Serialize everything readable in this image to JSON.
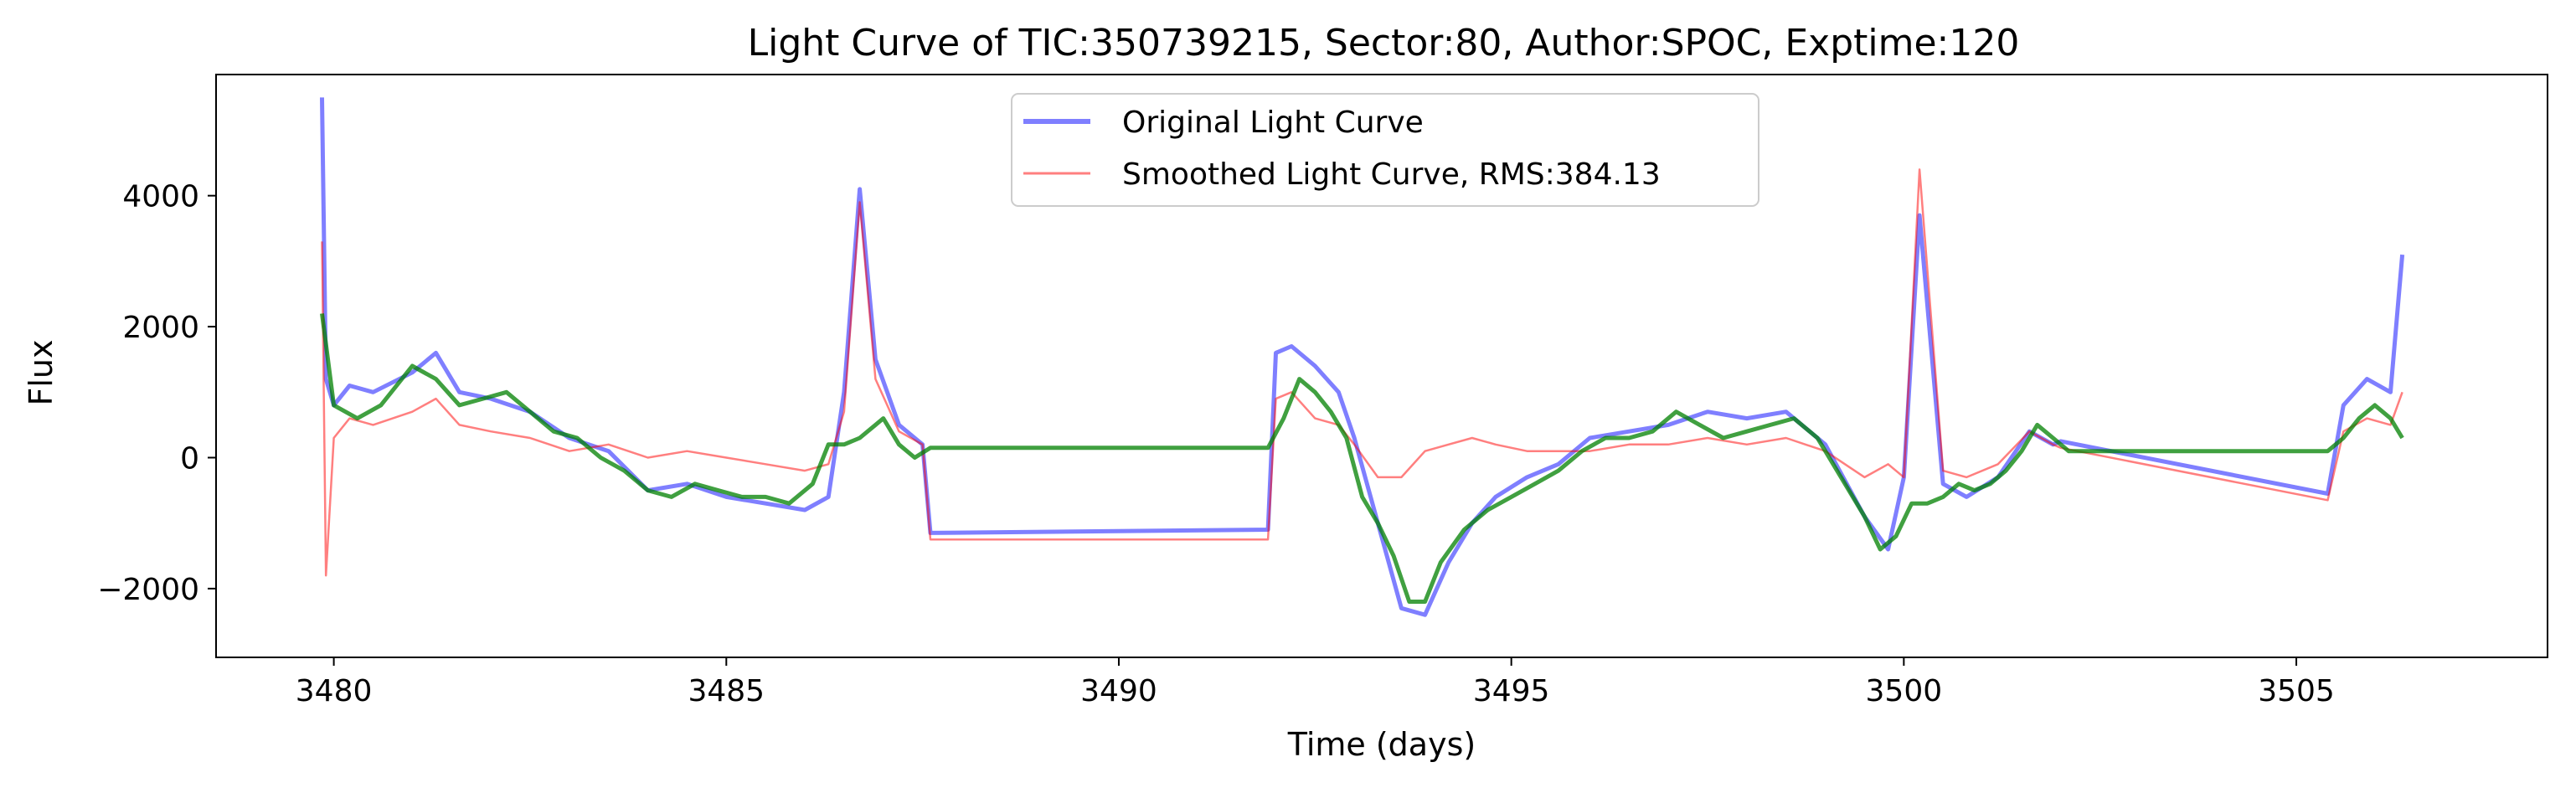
{
  "chart_data": {
    "type": "line",
    "title": "Light Curve of TIC:350739215, Sector:80, Author:SPOC, Exptime:120",
    "xlabel": "Time (days)",
    "ylabel": "Flux",
    "xlim": [
      3478.5,
      3508.2
    ],
    "ylim": [
      -3050,
      5850
    ],
    "xticks": [
      3480,
      3485,
      3490,
      3495,
      3500,
      3505
    ],
    "xtick_labels": [
      "3480",
      "3485",
      "3490",
      "3495",
      "3500",
      "3505"
    ],
    "yticks": [
      -2000,
      0,
      2000,
      4000
    ],
    "ytick_labels": [
      "−2000",
      "0",
      "2000",
      "4000"
    ],
    "grid": false,
    "legend_position": "top-center",
    "colors": {
      "original": "#0000ff",
      "smoothed": "#ff0000",
      "trend": "#008000"
    },
    "series": [
      {
        "name": "Original Light Curve",
        "color": "#0000ff",
        "x": [
          3479.85,
          3479.9,
          3480.0,
          3480.2,
          3480.5,
          3481.0,
          3481.3,
          3481.6,
          3482.0,
          3482.5,
          3483.0,
          3483.5,
          3484.0,
          3484.5,
          3485.0,
          3485.5,
          3486.0,
          3486.3,
          3486.5,
          3486.7,
          3486.9,
          3487.2,
          3487.5,
          3487.6,
          3491.9,
          3492.0,
          3492.2,
          3492.5,
          3492.8,
          3493.0,
          3493.3,
          3493.6,
          3493.9,
          3494.2,
          3494.5,
          3494.8,
          3495.2,
          3495.6,
          3496.0,
          3496.5,
          3497.0,
          3497.5,
          3498.0,
          3498.5,
          3499.0,
          3499.5,
          3499.8,
          3500.0,
          3500.2,
          3500.5,
          3500.8,
          3501.2,
          3501.6,
          3501.9,
          3502.0,
          3505.4,
          3505.6,
          3505.9,
          3506.2,
          3506.35
        ],
        "values": [
          5500,
          1200,
          800,
          1100,
          1000,
          1300,
          1600,
          1000,
          900,
          700,
          300,
          100,
          -500,
          -400,
          -600,
          -700,
          -800,
          -600,
          1000,
          4100,
          1500,
          500,
          200,
          -1150,
          -1100,
          1600,
          1700,
          1400,
          1000,
          300,
          -1000,
          -2300,
          -2400,
          -1600,
          -1000,
          -600,
          -300,
          -100,
          300,
          400,
          500,
          700,
          600,
          700,
          200,
          -900,
          -1400,
          -300,
          3700,
          -400,
          -600,
          -300,
          400,
          200,
          250,
          -550,
          800,
          1200,
          1000,
          3100
        ]
      },
      {
        "name": "Smoothed Light Curve, RMS:384.13",
        "color": "#ff0000",
        "x": [
          3479.85,
          3479.9,
          3480.0,
          3480.2,
          3480.5,
          3481.0,
          3481.3,
          3481.6,
          3482.0,
          3482.5,
          3483.0,
          3483.5,
          3484.0,
          3484.5,
          3485.0,
          3485.5,
          3486.0,
          3486.3,
          3486.5,
          3486.7,
          3486.9,
          3487.2,
          3487.5,
          3487.6,
          3491.9,
          3492.0,
          3492.2,
          3492.5,
          3492.8,
          3493.0,
          3493.3,
          3493.6,
          3493.9,
          3494.2,
          3494.5,
          3494.8,
          3495.2,
          3495.6,
          3496.0,
          3496.5,
          3497.0,
          3497.5,
          3498.0,
          3498.5,
          3499.0,
          3499.5,
          3499.8,
          3500.0,
          3500.2,
          3500.5,
          3500.8,
          3501.2,
          3501.6,
          3501.9,
          3502.0,
          3505.4,
          3505.6,
          3505.9,
          3506.2,
          3506.35
        ],
        "values": [
          3300,
          -1800,
          300,
          600,
          500,
          700,
          900,
          500,
          400,
          300,
          100,
          200,
          0,
          100,
          0,
          -100,
          -200,
          -100,
          700,
          3900,
          1200,
          400,
          200,
          -1250,
          -1250,
          900,
          1000,
          600,
          500,
          200,
          -300,
          -300,
          100,
          200,
          300,
          200,
          100,
          100,
          100,
          200,
          200,
          300,
          200,
          300,
          100,
          -300,
          -100,
          -300,
          4400,
          -200,
          -300,
          -100,
          400,
          200,
          150,
          -650,
          400,
          600,
          500,
          1000
        ]
      },
      {
        "name": "",
        "color": "#008000",
        "x": [
          3479.85,
          3480.0,
          3480.3,
          3480.6,
          3481.0,
          3481.3,
          3481.6,
          3481.9,
          3482.2,
          3482.5,
          3482.8,
          3483.1,
          3483.4,
          3483.7,
          3484.0,
          3484.3,
          3484.6,
          3484.9,
          3485.2,
          3485.5,
          3485.8,
          3486.1,
          3486.3,
          3486.5,
          3486.7,
          3486.9,
          3487.0,
          3487.2,
          3487.4,
          3487.6,
          3491.9,
          3492.1,
          3492.3,
          3492.5,
          3492.7,
          3492.9,
          3493.1,
          3493.3,
          3493.5,
          3493.7,
          3493.9,
          3494.1,
          3494.4,
          3494.7,
          3495.0,
          3495.3,
          3495.6,
          3495.9,
          3496.2,
          3496.5,
          3496.8,
          3497.1,
          3497.4,
          3497.7,
          3498.0,
          3498.3,
          3498.6,
          3498.9,
          3499.2,
          3499.5,
          3499.7,
          3499.9,
          3500.1,
          3500.3,
          3500.5,
          3500.7,
          3500.9,
          3501.1,
          3501.3,
          3501.5,
          3501.7,
          3501.9,
          3502.1,
          3505.4,
          3505.6,
          3505.8,
          3506.0,
          3506.2,
          3506.35
        ],
        "values": [
          2200,
          800,
          600,
          800,
          1400,
          1200,
          800,
          900,
          1000,
          700,
          400,
          300,
          0,
          -200,
          -500,
          -600,
          -400,
          -500,
          -600,
          -600,
          -700,
          -400,
          200,
          200,
          300,
          500,
          600,
          200,
          0,
          150,
          150,
          600,
          1200,
          1000,
          700,
          300,
          -600,
          -1000,
          -1500,
          -2200,
          -2200,
          -1600,
          -1100,
          -800,
          -600,
          -400,
          -200,
          100,
          300,
          300,
          400,
          700,
          500,
          300,
          400,
          500,
          600,
          300,
          -300,
          -900,
          -1400,
          -1200,
          -700,
          -700,
          -600,
          -400,
          -500,
          -400,
          -200,
          100,
          500,
          300,
          100,
          100,
          300,
          600,
          800,
          600,
          300
        ]
      }
    ]
  }
}
